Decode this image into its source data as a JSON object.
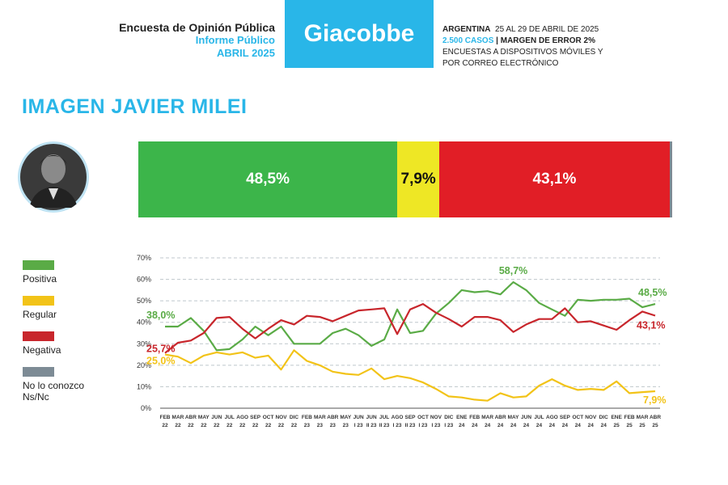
{
  "header": {
    "line1": "Encuesta de Opinión Pública",
    "line2": "Informe Público",
    "line3": "ABRIL 2025",
    "brand": "Giacobbe",
    "country": "ARGENTINA",
    "dates": "25 AL 29 DE ABRIL DE 2025",
    "cases": "2.500 CASOS",
    "sep": "|",
    "margin": "MARGEN DE ERROR 2%",
    "method1": "ENCUESTAS A DISPOSITIVOS MÓVILES Y",
    "method2": "POR CORREO ELECTRÓNICO"
  },
  "title": "IMAGEN JAVIER MILEI",
  "colors": {
    "positiva": "#5aab46",
    "regular": "#f2c318",
    "negativa": "#c8262c",
    "nsnc": "#7d8b95",
    "bar_green": "#3cb54a",
    "bar_yellow": "#eee725",
    "bar_red": "#e11e26",
    "accent": "#29b6e8"
  },
  "current_bar": [
    {
      "name": "Positiva",
      "value": 48.5,
      "label": "48,5%"
    },
    {
      "name": "Regular",
      "value": 7.9,
      "label": "7,9%"
    },
    {
      "name": "Negativa",
      "value": 43.1,
      "label": "43,1%"
    },
    {
      "name": "No lo conozco Ns/Nc",
      "value": 0.5,
      "label": ""
    }
  ],
  "legend": [
    {
      "name": "Positiva",
      "color": "#5aab46"
    },
    {
      "name": "Regular",
      "color": "#f2c318"
    },
    {
      "name": "Negativa",
      "color": "#c8262c"
    },
    {
      "name": "No lo conozco",
      "name2": "Ns/Nc",
      "color": "#7d8b95"
    }
  ],
  "chart_data": {
    "type": "line",
    "ylim": [
      0,
      70
    ],
    "yticks": [
      "0%",
      "10%",
      "20%",
      "30%",
      "40%",
      "50%",
      "60%",
      "70%"
    ],
    "grid": true,
    "x_top": [
      "FEB",
      "MAR",
      "ABR",
      "MAY",
      "JUN",
      "JUL",
      "AGO",
      "SEP",
      "OCT",
      "NOV",
      "DIC",
      "FEB",
      "MAR",
      "ABR",
      "MAY",
      "JUN",
      "JUN",
      "JUL",
      "AGO",
      "SEP",
      "OCT",
      "NOV",
      "DIC",
      "ENE",
      "FEB",
      "MAR",
      "ABR",
      "MAY",
      "JUN",
      "JUL",
      "AGO",
      "SEP",
      "OCT",
      "NOV",
      "DIC",
      "ENE",
      "FEB",
      "MAR",
      "ABR"
    ],
    "x_bottom": [
      "22",
      "22",
      "22",
      "22",
      "22",
      "22",
      "22",
      "22",
      "22",
      "22",
      "22",
      "23",
      "23",
      "23",
      "23",
      "I 23",
      "II 23",
      "II 23",
      "I 23",
      "II 23",
      "I 23",
      "I 23",
      "I 23",
      "24",
      "24",
      "24",
      "24",
      "24",
      "24",
      "24",
      "24",
      "24",
      "24",
      "24",
      "24",
      "25",
      "25",
      "25",
      "25"
    ],
    "series": [
      {
        "name": "Positiva",
        "color": "#5aab46",
        "values": [
          38.0,
          38.0,
          42.0,
          36.0,
          27.0,
          27.5,
          32.0,
          38.0,
          34.0,
          38.0,
          30.0,
          30.0,
          30.0,
          35.0,
          37.0,
          34.0,
          29.0,
          32.0,
          46.0,
          35.0,
          36.0,
          44.0,
          49.0,
          55.0,
          54.0,
          54.5,
          53.0,
          58.7,
          55.0,
          49.0,
          46.0,
          43.0,
          50.5,
          50.0,
          50.5,
          50.5,
          51.0,
          47.0,
          48.5
        ]
      },
      {
        "name": "Regular",
        "color": "#f2c318",
        "values": [
          25.0,
          24.0,
          21.0,
          24.5,
          26.0,
          25.0,
          26.0,
          23.5,
          24.5,
          18.0,
          27.0,
          22.0,
          20.0,
          17.0,
          16.0,
          15.5,
          18.5,
          13.5,
          15.0,
          14.0,
          12.0,
          9.0,
          5.5,
          5.0,
          4.0,
          3.5,
          7.0,
          5.0,
          5.5,
          10.5,
          13.5,
          10.5,
          8.5,
          9.0,
          8.5,
          12.5,
          7.0,
          7.5,
          7.9
        ]
      },
      {
        "name": "Negativa",
        "color": "#c8262c",
        "values": [
          25.7,
          30.5,
          31.5,
          35.0,
          42.0,
          42.5,
          37.0,
          32.5,
          37.0,
          41.0,
          39.0,
          43.0,
          42.5,
          40.5,
          43.0,
          45.5,
          46.0,
          46.5,
          34.5,
          46.0,
          48.5,
          44.5,
          41.5,
          38.0,
          42.5,
          42.5,
          41.0,
          35.5,
          39.0,
          41.5,
          41.5,
          46.5,
          40.0,
          40.5,
          38.5,
          36.5,
          41.0,
          45.0,
          43.1
        ]
      }
    ],
    "annotations": [
      {
        "text": "38,0%",
        "series": "Positiva",
        "index": 0
      },
      {
        "text": "25,7%",
        "series": "Negativa",
        "index": 0
      },
      {
        "text": "25,0%",
        "series": "Regular",
        "index": 0
      },
      {
        "text": "58,7%",
        "series": "Positiva",
        "index": 27
      },
      {
        "text": "48,5%",
        "series": "Positiva",
        "index": 38
      },
      {
        "text": "43,1%",
        "series": "Negativa",
        "index": 38
      },
      {
        "text": "7,9%",
        "series": "Regular",
        "index": 38
      }
    ]
  }
}
